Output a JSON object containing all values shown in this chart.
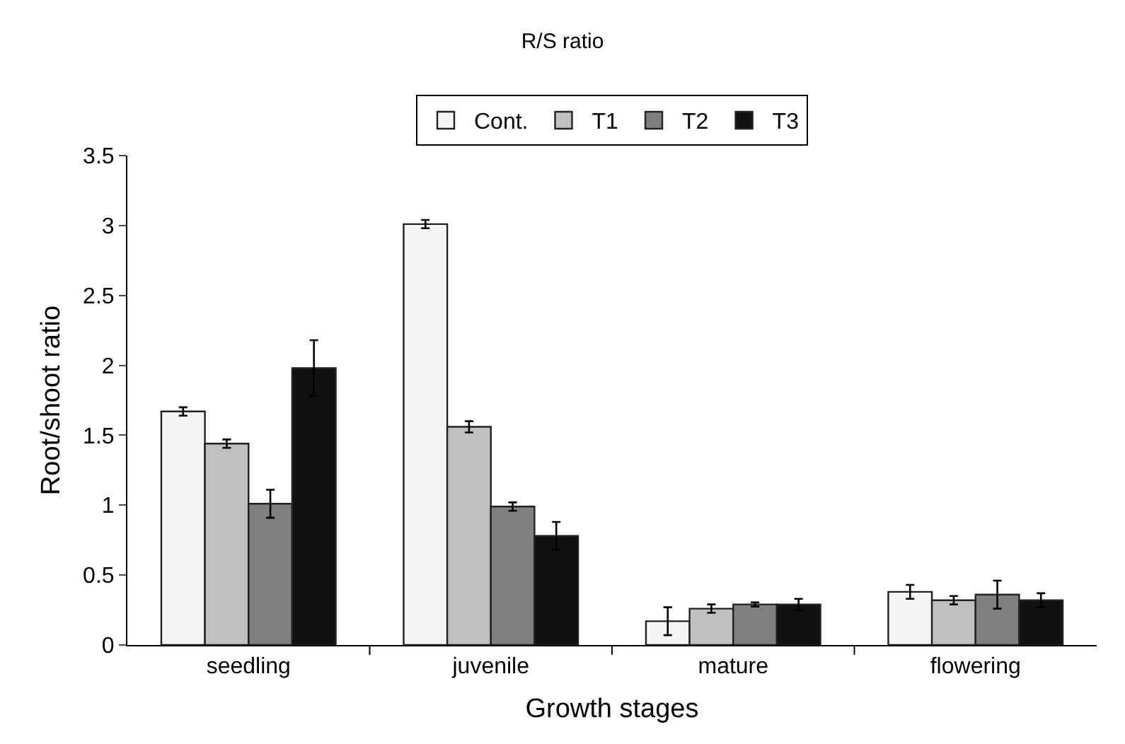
{
  "chart_data": {
    "type": "bar",
    "title": "R/S ratio",
    "xlabel": "Growth stages",
    "ylabel": "Root/shoot ratio",
    "categories": [
      "seedling",
      "juvenile",
      "mature",
      "flowering"
    ],
    "series": [
      {
        "name": "Cont.",
        "color": "#f4f4f4",
        "values": [
          1.67,
          3.01,
          0.17,
          0.38
        ],
        "errors": [
          0.03,
          0.03,
          0.1,
          0.05
        ]
      },
      {
        "name": "T1",
        "color": "#c0c0c0",
        "values": [
          1.44,
          1.56,
          0.26,
          0.32
        ],
        "errors": [
          0.03,
          0.04,
          0.03,
          0.03
        ]
      },
      {
        "name": "T2",
        "color": "#7f7f7f",
        "values": [
          1.01,
          0.99,
          0.29,
          0.36
        ],
        "errors": [
          0.1,
          0.03,
          0.015,
          0.1
        ]
      },
      {
        "name": "T3",
        "color": "#111111",
        "values": [
          1.98,
          0.78,
          0.29,
          0.32
        ],
        "errors": [
          0.2,
          0.1,
          0.04,
          0.05
        ]
      }
    ],
    "ylim": [
      0,
      3.5
    ],
    "yticks": [
      0,
      0.5,
      1,
      1.5,
      2,
      2.5,
      3,
      3.5
    ],
    "grid": false,
    "legend": "top"
  }
}
